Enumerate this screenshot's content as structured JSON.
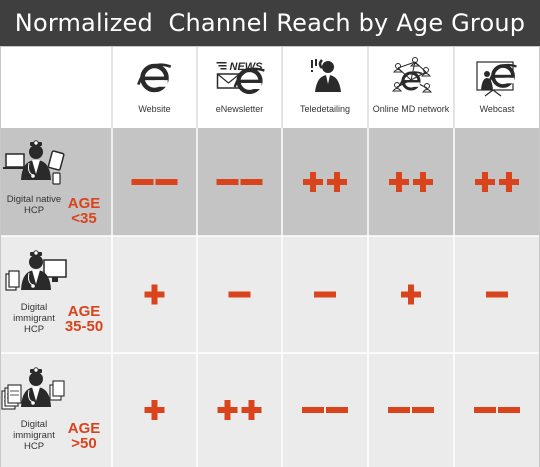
{
  "title": "Normalized  Channel Reach by Age Group",
  "colors": {
    "header_bg": "#3f3f3f",
    "row1_bg": "#c4c4c4",
    "row_bg": "#ebebeb",
    "accent": "#d9441d",
    "grid_line": "#ffffff"
  },
  "chart_data": {
    "type": "table",
    "columns": [
      {
        "label": "Website",
        "icon": "website-ie-icon"
      },
      {
        "label": "eNewsletter",
        "icon": "enewsletter-icon"
      },
      {
        "label": "Teledetailing",
        "icon": "teledetailing-icon"
      },
      {
        "label": "Online MD network",
        "icon": "online-md-network-icon"
      },
      {
        "label": "Webcast",
        "icon": "webcast-icon"
      }
    ],
    "rows": [
      {
        "hcp": "Digital native HCP",
        "age_prefix": "AGE",
        "age_range": "<35",
        "values": [
          "−−",
          "−−",
          "++",
          "++",
          "++"
        ],
        "icon": "doctor-devices-icon"
      },
      {
        "hcp": "Digital immigrant HCP",
        "age_prefix": "AGE",
        "age_range": "35-50",
        "values": [
          "+",
          "−",
          "−",
          "+",
          "−"
        ],
        "icon": "doctor-computer-icon"
      },
      {
        "hcp": "Digital immigrant HCP",
        "age_prefix": "AGE",
        "age_range": ">50",
        "values": [
          "+",
          "++",
          "−−",
          "−−",
          "−−"
        ],
        "icon": "doctor-papers-icon"
      }
    ]
  },
  "icons": {
    "enewsletter_news_text": "NEWS"
  }
}
